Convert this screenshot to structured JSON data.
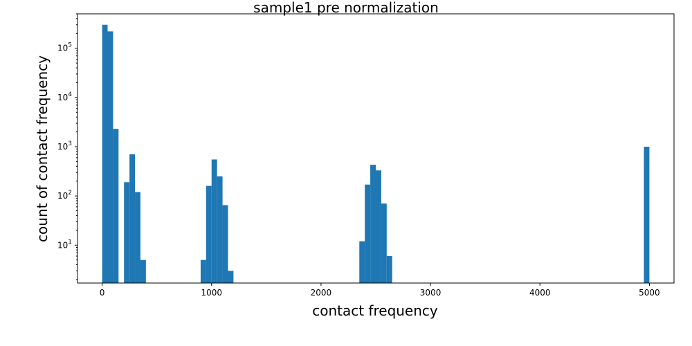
{
  "chart_data": {
    "type": "bar",
    "title": "sample1 pre normalization",
    "xlabel": "contact frequency",
    "ylabel": "count of contact frequency",
    "xscale": "linear",
    "yscale": "log",
    "xlim": [
      -225,
      5225
    ],
    "ylim": [
      1.7,
      500000
    ],
    "bin_width": 50,
    "color": "#1f77b4",
    "xticks": [
      0,
      1000,
      2000,
      3000,
      4000,
      5000
    ],
    "yticks": [
      {
        "value": 10,
        "base": "10",
        "exp": "1"
      },
      {
        "value": 100,
        "base": "10",
        "exp": "2"
      },
      {
        "value": 1000,
        "base": "10",
        "exp": "3"
      },
      {
        "value": 10000,
        "base": "10",
        "exp": "4"
      },
      {
        "value": 100000,
        "base": "10",
        "exp": "5"
      }
    ],
    "grid": false,
    "bins": [
      {
        "x": 0,
        "count": 300000
      },
      {
        "x": 50,
        "count": 220000
      },
      {
        "x": 100,
        "count": 2300
      },
      {
        "x": 200,
        "count": 190
      },
      {
        "x": 250,
        "count": 700
      },
      {
        "x": 300,
        "count": 120
      },
      {
        "x": 350,
        "count": 5
      },
      {
        "x": 900,
        "count": 5
      },
      {
        "x": 950,
        "count": 160
      },
      {
        "x": 1000,
        "count": 550
      },
      {
        "x": 1050,
        "count": 250
      },
      {
        "x": 1100,
        "count": 65
      },
      {
        "x": 1150,
        "count": 3
      },
      {
        "x": 2350,
        "count": 12
      },
      {
        "x": 2400,
        "count": 170
      },
      {
        "x": 2450,
        "count": 430
      },
      {
        "x": 2500,
        "count": 330
      },
      {
        "x": 2550,
        "count": 70
      },
      {
        "x": 2600,
        "count": 6
      },
      {
        "x": 4950,
        "count": 1000
      }
    ]
  }
}
